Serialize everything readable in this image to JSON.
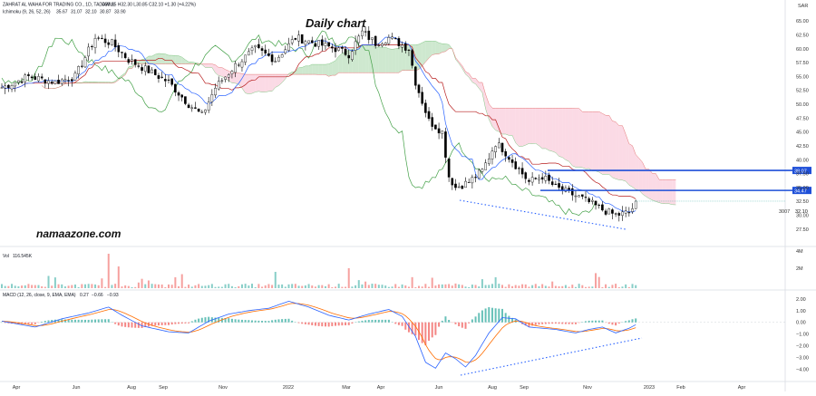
{
  "header": {
    "symbol_line": "ZAHRAT AL WAHA FOR TRADING CO., 1D, TADAWUL",
    "ohlc": "O30.85 H32.30 L30.85 C32.10 +1.30 (+4.22%)",
    "ichimoku_label": "Ichimoku (9, 26, 52, 26)",
    "ichimoku_values": [
      "35.67",
      "31.07",
      "32.10",
      "30.87",
      "33.90"
    ],
    "volume_label": "Vol",
    "volume_value": "116.545K",
    "macd_label": "MACD (12, 26, close, 9, EMA, EMA)",
    "macd_values": [
      "0.27",
      "−0.66",
      "−0.93"
    ]
  },
  "annotation": {
    "title": "Daily chart",
    "watermark": "namaazone.com"
  },
  "colors": {
    "up": "#26a69a",
    "down": "#ef5350",
    "candle": "#000000",
    "tenkan": "#2962ff",
    "kijun": "#b71c1c",
    "lagging": "#43a047",
    "cloud_bull": "#a5d6a7",
    "cloud_bear": "#f8bbd0",
    "level": "#1e4fd8",
    "macd_line": "#2962ff",
    "signal_line": "#ff6d00"
  },
  "chart_data": {
    "type": "candlestick",
    "currency": "SAR",
    "x_ticks": [
      "Apr",
      "Jun",
      "Aug",
      "Sep",
      "Nov",
      "2022",
      "Mar",
      "Apr",
      "Jun",
      "Aug",
      "Sep",
      "Nov",
      "2023",
      "Feb",
      "Apr"
    ],
    "price_axis": {
      "ticks": [
        "65.00",
        "62.50",
        "60.00",
        "57.50",
        "55.00",
        "52.50",
        "50.00",
        "47.50",
        "45.00",
        "42.50",
        "40.00",
        "37.50",
        "35.00",
        "32.50",
        "30.00",
        "27.50"
      ],
      "ylim": [
        26,
        66.5
      ],
      "current_price": "32.10",
      "countdown": "3007"
    },
    "levels": [
      {
        "label": "38.07",
        "value": 38.07
      },
      {
        "label": "34.47",
        "value": 34.47
      }
    ],
    "price_path": [
      [
        0,
        53
      ],
      [
        8,
        55
      ],
      [
        16,
        54
      ],
      [
        22,
        55
      ],
      [
        28,
        62
      ],
      [
        33,
        61
      ],
      [
        38,
        58
      ],
      [
        44,
        56
      ],
      [
        50,
        54
      ],
      [
        56,
        50
      ],
      [
        60,
        48
      ],
      [
        64,
        53
      ],
      [
        70,
        57
      ],
      [
        76,
        60
      ],
      [
        82,
        58
      ],
      [
        88,
        62
      ],
      [
        94,
        61
      ],
      [
        100,
        60
      ],
      [
        104,
        59
      ],
      [
        108,
        63
      ],
      [
        112,
        61
      ],
      [
        116,
        62
      ],
      [
        122,
        60
      ],
      [
        124,
        54
      ],
      [
        128,
        47
      ],
      [
        132,
        45
      ],
      [
        134,
        37
      ],
      [
        136,
        35
      ],
      [
        140,
        36
      ],
      [
        144,
        38
      ],
      [
        148,
        43
      ],
      [
        150,
        42
      ],
      [
        154,
        39
      ],
      [
        158,
        36
      ],
      [
        162,
        37
      ],
      [
        166,
        35
      ],
      [
        170,
        34
      ],
      [
        174,
        33
      ],
      [
        180,
        31
      ],
      [
        184,
        30
      ],
      [
        188,
        30.5
      ],
      [
        190,
        32
      ]
    ],
    "volume_axis": {
      "ticks": [
        "4M",
        "2M"
      ]
    },
    "macd_axis": {
      "ticks": [
        "2.00",
        "1.00",
        "0.00",
        "−1.00",
        "−2.00",
        "−3.00",
        "−4.00"
      ],
      "ylim": [
        -4.8,
        2.6
      ]
    },
    "macd_path": [
      [
        0,
        0.1
      ],
      [
        10,
        -0.4
      ],
      [
        18,
        0.3
      ],
      [
        26,
        0.8
      ],
      [
        32,
        1.3
      ],
      [
        36,
        0.6
      ],
      [
        42,
        -0.3
      ],
      [
        50,
        -0.8
      ],
      [
        56,
        -0.9
      ],
      [
        62,
        0.1
      ],
      [
        68,
        0.7
      ],
      [
        74,
        1.0
      ],
      [
        80,
        1.2
      ],
      [
        86,
        1.8
      ],
      [
        92,
        1.3
      ],
      [
        98,
        0.6
      ],
      [
        104,
        0.2
      ],
      [
        110,
        0.7
      ],
      [
        116,
        1.1
      ],
      [
        120,
        0.5
      ],
      [
        124,
        -1.2
      ],
      [
        127,
        -3.4
      ],
      [
        130,
        -3.9
      ],
      [
        133,
        -2.6
      ],
      [
        136,
        -3.1
      ],
      [
        139,
        -3.8
      ],
      [
        142,
        -2.8
      ],
      [
        146,
        -0.9
      ],
      [
        150,
        0.4
      ],
      [
        154,
        0.3
      ],
      [
        158,
        -0.4
      ],
      [
        162,
        -0.5
      ],
      [
        166,
        -0.6
      ],
      [
        172,
        -0.9
      ],
      [
        176,
        -0.6
      ],
      [
        180,
        -0.4
      ],
      [
        184,
        -0.9
      ],
      [
        188,
        -0.5
      ],
      [
        190,
        -0.2
      ]
    ]
  }
}
